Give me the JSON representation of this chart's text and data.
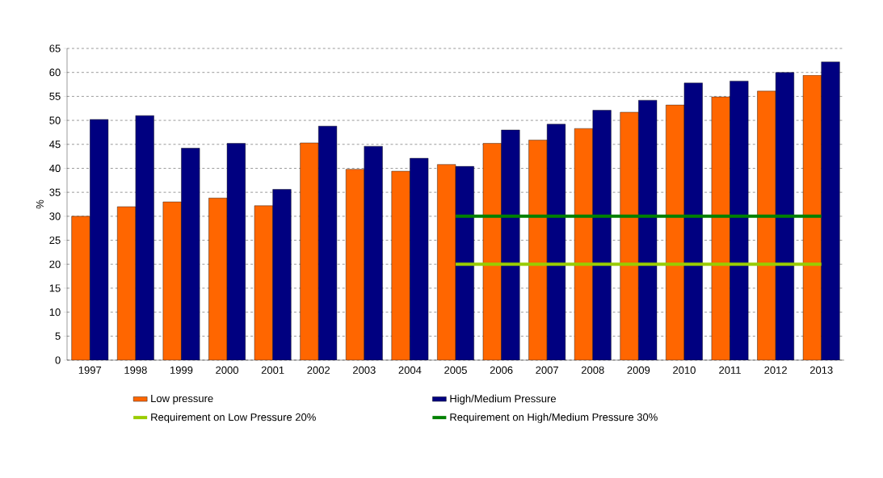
{
  "chart_data": {
    "type": "bar",
    "ylabel": "%",
    "categories": [
      "1997",
      "1998",
      "1999",
      "2000",
      "2001",
      "2002",
      "2003",
      "2004",
      "2005",
      "2006",
      "2007",
      "2008",
      "2009",
      "2010",
      "2011",
      "2012",
      "2013"
    ],
    "series": [
      {
        "name": "Low pressure",
        "color": "#ff6600",
        "values": [
          30.0,
          32.0,
          33.0,
          33.8,
          32.2,
          45.3,
          39.8,
          39.4,
          40.8,
          45.2,
          45.9,
          48.3,
          51.7,
          53.2,
          54.9,
          56.1,
          59.4
        ]
      },
      {
        "name": "High/Medium Pressure",
        "color": "#000080",
        "values": [
          50.2,
          51.0,
          44.2,
          45.2,
          35.6,
          48.8,
          44.6,
          42.1,
          40.4,
          48.0,
          49.2,
          52.1,
          54.2,
          57.8,
          58.2,
          60.0,
          62.2
        ]
      },
      {
        "name": "Requirement on Low Pressure 20%",
        "type": "line",
        "color": "#99cc00",
        "values": [
          null,
          null,
          null,
          null,
          null,
          null,
          null,
          null,
          20,
          20,
          20,
          20,
          20,
          20,
          20,
          20,
          20
        ]
      },
      {
        "name": "Requirement on High/Medium Pressure 30%",
        "type": "line",
        "color": "#008000",
        "values": [
          null,
          null,
          null,
          null,
          null,
          null,
          null,
          null,
          30,
          30,
          30,
          30,
          30,
          30,
          30,
          30,
          30
        ]
      }
    ],
    "ylim": [
      0,
      65
    ],
    "yticks": [
      0,
      5,
      10,
      15,
      20,
      25,
      30,
      35,
      40,
      45,
      50,
      55,
      60,
      65
    ],
    "grid": "y",
    "legend": "bottom"
  }
}
